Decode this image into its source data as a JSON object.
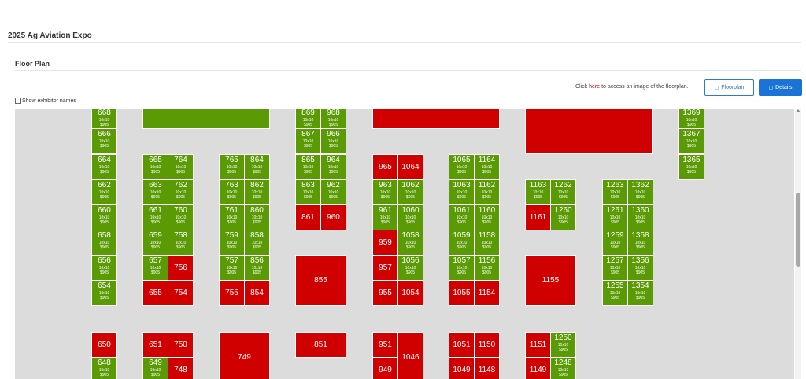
{
  "page": {
    "title": "2025 Ag Aviation Expo",
    "section_title": "Floor Plan",
    "click_prefix": "Click ",
    "click_link": "here",
    "click_suffix": " to access an image of the floorplan.",
    "floorplan_button": "Floorplan",
    "details_button": "Details",
    "show_names_label": "Show exhibitor names"
  },
  "colors": {
    "available": "#5a9a05",
    "taken": "#d10000",
    "floor": "#dcdcdc",
    "primary": "#1a73d6"
  },
  "booth_size": "10x10",
  "booth_price": "$905",
  "booths": [
    {
      "n": "668",
      "s": "g"
    },
    {
      "n": "666",
      "s": "g"
    },
    {
      "n": "664",
      "s": "g"
    },
    {
      "n": "662",
      "s": "g"
    },
    {
      "n": "660",
      "s": "g"
    },
    {
      "n": "658",
      "s": "g"
    },
    {
      "n": "656",
      "s": "g"
    },
    {
      "n": "654",
      "s": "g"
    },
    {
      "n": "650",
      "s": "r"
    },
    {
      "n": "648",
      "s": "g"
    },
    {
      "n": "665",
      "s": "g"
    },
    {
      "n": "663",
      "s": "g"
    },
    {
      "n": "661",
      "s": "g"
    },
    {
      "n": "659",
      "s": "g"
    },
    {
      "n": "657",
      "s": "g"
    },
    {
      "n": "655",
      "s": "r"
    },
    {
      "n": "651",
      "s": "r"
    },
    {
      "n": "649",
      "s": "g"
    },
    {
      "n": "764",
      "s": "g"
    },
    {
      "n": "762",
      "s": "g"
    },
    {
      "n": "760",
      "s": "g"
    },
    {
      "n": "758",
      "s": "g"
    },
    {
      "n": "756",
      "s": "r"
    },
    {
      "n": "754",
      "s": "r"
    },
    {
      "n": "750",
      "s": "r"
    },
    {
      "n": "748",
      "s": "r"
    },
    {
      "n": "765",
      "s": "g"
    },
    {
      "n": "763",
      "s": "g"
    },
    {
      "n": "761",
      "s": "g"
    },
    {
      "n": "759",
      "s": "g"
    },
    {
      "n": "757",
      "s": "g"
    },
    {
      "n": "755",
      "s": "r"
    },
    {
      "n": "749",
      "s": "r"
    },
    {
      "n": "864",
      "s": "g"
    },
    {
      "n": "862",
      "s": "g"
    },
    {
      "n": "860",
      "s": "g"
    },
    {
      "n": "858",
      "s": "g"
    },
    {
      "n": "856",
      "s": "g"
    },
    {
      "n": "854",
      "s": "r"
    },
    {
      "n": "869",
      "s": "g"
    },
    {
      "n": "867",
      "s": "g"
    },
    {
      "n": "865",
      "s": "g"
    },
    {
      "n": "863",
      "s": "g"
    },
    {
      "n": "861",
      "s": "r"
    },
    {
      "n": "855",
      "s": "r"
    },
    {
      "n": "851",
      "s": "r"
    },
    {
      "n": "968",
      "s": "g"
    },
    {
      "n": "966",
      "s": "g"
    },
    {
      "n": "964",
      "s": "g"
    },
    {
      "n": "962",
      "s": "g"
    },
    {
      "n": "960",
      "s": "r"
    },
    {
      "n": "965",
      "s": "r"
    },
    {
      "n": "963",
      "s": "g"
    },
    {
      "n": "961",
      "s": "g"
    },
    {
      "n": "959",
      "s": "r"
    },
    {
      "n": "957",
      "s": "r"
    },
    {
      "n": "955",
      "s": "r"
    },
    {
      "n": "951",
      "s": "r"
    },
    {
      "n": "949",
      "s": "r"
    },
    {
      "n": "1064",
      "s": "r"
    },
    {
      "n": "1062",
      "s": "g"
    },
    {
      "n": "1060",
      "s": "g"
    },
    {
      "n": "1058",
      "s": "g"
    },
    {
      "n": "1056",
      "s": "g"
    },
    {
      "n": "1054",
      "s": "r"
    },
    {
      "n": "1046",
      "s": "r"
    },
    {
      "n": "1065",
      "s": "g"
    },
    {
      "n": "1063",
      "s": "g"
    },
    {
      "n": "1061",
      "s": "g"
    },
    {
      "n": "1059",
      "s": "g"
    },
    {
      "n": "1057",
      "s": "g"
    },
    {
      "n": "1055",
      "s": "r"
    },
    {
      "n": "1051",
      "s": "r"
    },
    {
      "n": "1049",
      "s": "r"
    },
    {
      "n": "1164",
      "s": "g"
    },
    {
      "n": "1162",
      "s": "g"
    },
    {
      "n": "1160",
      "s": "g"
    },
    {
      "n": "1158",
      "s": "g"
    },
    {
      "n": "1156",
      "s": "g"
    },
    {
      "n": "1154",
      "s": "r"
    },
    {
      "n": "1150",
      "s": "r"
    },
    {
      "n": "1148",
      "s": "r"
    },
    {
      "n": "1163",
      "s": "g"
    },
    {
      "n": "1161",
      "s": "r"
    },
    {
      "n": "1155",
      "s": "r"
    },
    {
      "n": "1151",
      "s": "r"
    },
    {
      "n": "1149",
      "s": "r"
    },
    {
      "n": "1262",
      "s": "g"
    },
    {
      "n": "1260",
      "s": "g"
    },
    {
      "n": "1250",
      "s": "g"
    },
    {
      "n": "1248",
      "s": "g"
    },
    {
      "n": "1263",
      "s": "g"
    },
    {
      "n": "1261",
      "s": "g"
    },
    {
      "n": "1259",
      "s": "g"
    },
    {
      "n": "1257",
      "s": "g"
    },
    {
      "n": "1255",
      "s": "g"
    },
    {
      "n": "1362",
      "s": "g"
    },
    {
      "n": "1360",
      "s": "g"
    },
    {
      "n": "1358",
      "s": "g"
    },
    {
      "n": "1356",
      "s": "g"
    },
    {
      "n": "1354",
      "s": "g"
    },
    {
      "n": "1369",
      "s": "g"
    },
    {
      "n": "1367",
      "s": "g"
    },
    {
      "n": "1365",
      "s": "g"
    }
  ]
}
